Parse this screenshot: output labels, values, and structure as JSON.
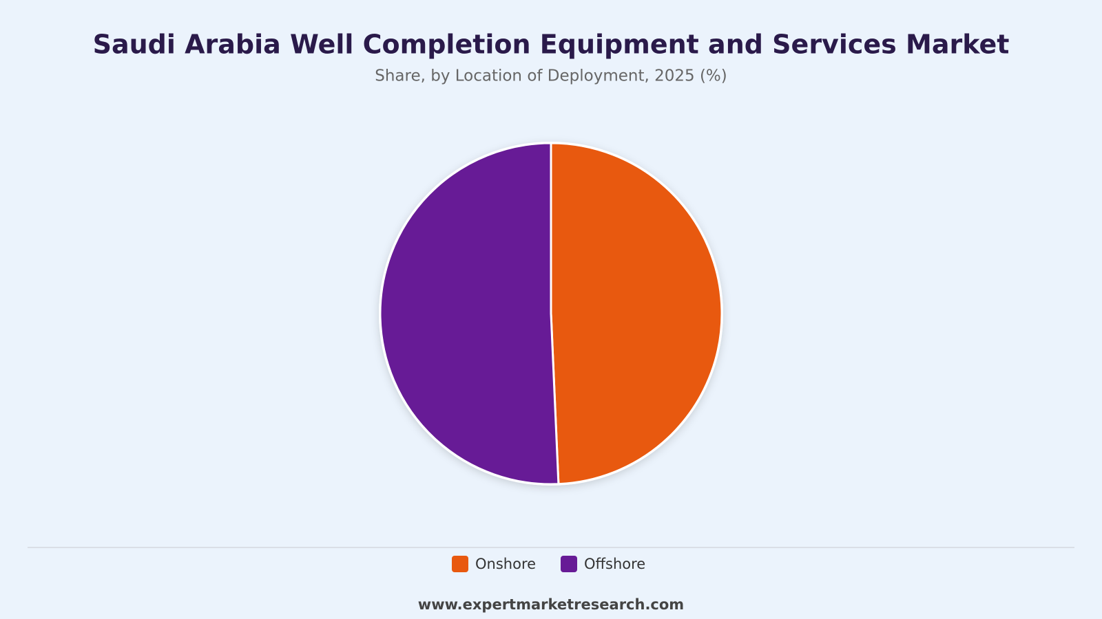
{
  "chart_data": {
    "type": "pie",
    "title": "Saudi Arabia Well Completion Equipment and Services Market",
    "subtitle": "Share, by Location of Deployment, 2025 (%)",
    "categories": [
      "Onshore",
      "Offshore"
    ],
    "values": [
      49.3,
      50.7
    ],
    "colors": [
      "#e8590f",
      "#671b96"
    ],
    "legend": "bottom",
    "source": "www.expertmarketresearch.com"
  }
}
